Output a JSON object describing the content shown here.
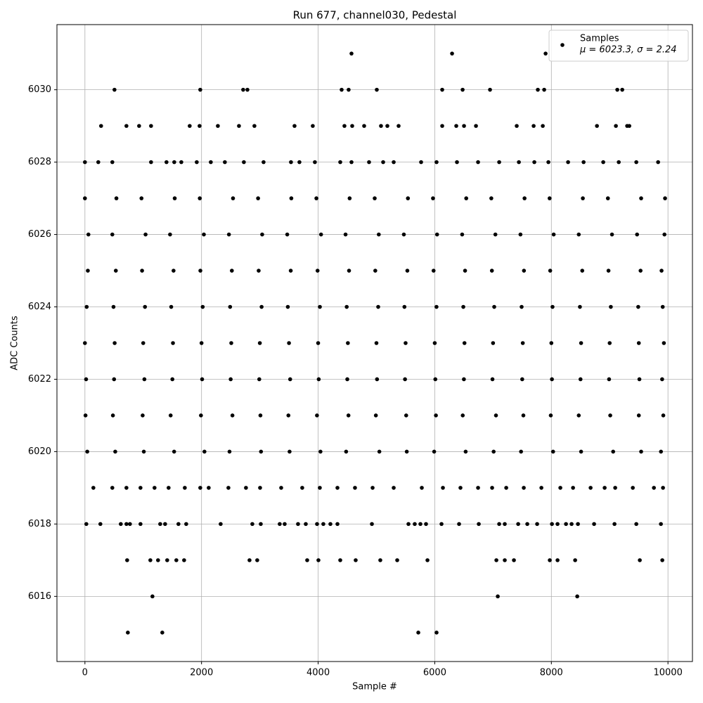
{
  "chart_data": {
    "type": "scatter",
    "title": "Run 677, channel030, Pedestal",
    "x_label": "Sample #",
    "y_label": "ADC Counts",
    "xlim": [
      -480,
      10420
    ],
    "ylim": [
      6014.2,
      6031.8
    ],
    "xticks": [
      0,
      2000,
      4000,
      6000,
      8000,
      10000
    ],
    "yticks": [
      6016,
      6018,
      6020,
      6022,
      6024,
      6026,
      6028,
      6030
    ],
    "grid": true,
    "legend": "upper right",
    "legend_note": "μ = 6023.3, σ = 2.24",
    "series": [
      {
        "name": "Samples",
        "color": "#000000",
        "x": [
          4572,
          6297,
          7901,
          507,
          1978,
          2714,
          2787,
          4403,
          4523,
          5006,
          6128,
          6478,
          6948,
          7768,
          7877,
          9131,
          9216,
          277,
          712,
          929,
          1134,
          1797,
          1966,
          2280,
          2642,
          2907,
          3595,
          3908,
          4451,
          4584,
          4789,
          5078,
          5187,
          5380,
          6128,
          6369,
          6502,
          6707,
          7406,
          7696,
          7853,
          8782,
          9107,
          9300,
          9337,
          0,
          229,
          470,
          1134,
          1399,
          1532,
          1653,
          1918,
          2159,
          2400,
          2726,
          3064,
          3534,
          3679,
          3944,
          4379,
          4572,
          4873,
          5115,
          5296,
          5766,
          6031,
          6381,
          6743,
          7105,
          7443,
          7708,
          7949,
          8287,
          8553,
          8890,
          9156,
          9457,
          9831,
          0,
          540,
          970,
          1540,
          1970,
          2540,
          2970,
          3540,
          3970,
          4540,
          4970,
          5540,
          5970,
          6540,
          6970,
          7540,
          7970,
          8540,
          8970,
          9540,
          9950,
          60,
          470,
          1040,
          1460,
          2040,
          2470,
          3040,
          3470,
          4050,
          4470,
          5040,
          5470,
          6040,
          6470,
          7040,
          7470,
          8040,
          8470,
          9040,
          9470,
          9940,
          50,
          530,
          980,
          1520,
          1980,
          2520,
          2980,
          3530,
          3990,
          4530,
          4980,
          5530,
          5980,
          6520,
          6980,
          7530,
          7980,
          8530,
          8980,
          9530,
          9890,
          30,
          490,
          1030,
          1480,
          2020,
          2490,
          3030,
          3480,
          4030,
          4490,
          5030,
          5480,
          6030,
          6490,
          7020,
          7490,
          8020,
          8490,
          9020,
          9490,
          9910,
          0,
          510,
          1000,
          1510,
          2000,
          2510,
          3000,
          3500,
          4000,
          4510,
          5000,
          5500,
          6000,
          6510,
          7000,
          7510,
          8000,
          8510,
          9000,
          9500,
          9930,
          20,
          500,
          1020,
          1500,
          2010,
          2500,
          2990,
          3520,
          4010,
          4500,
          5010,
          5490,
          6010,
          6500,
          6990,
          7500,
          8010,
          8500,
          8990,
          9510,
          9900,
          10,
          480,
          990,
          1470,
          1990,
          2530,
          3010,
          3490,
          3980,
          4520,
          4990,
          5510,
          6020,
          6480,
          7050,
          7520,
          7990,
          8470,
          9010,
          9500,
          9920,
          40,
          520,
          1010,
          1530,
          2050,
          2480,
          3020,
          3510,
          4040,
          4480,
          5050,
          5520,
          5990,
          6530,
          7010,
          7480,
          8030,
          8510,
          9060,
          9540,
          9880,
          145,
          470,
          712,
          953,
          1194,
          1435,
          1713,
          1978,
          2123,
          2461,
          2762,
          3004,
          3366,
          3727,
          4029,
          4331,
          4632,
          4934,
          5296,
          5778,
          6140,
          6441,
          6743,
          6984,
          7226,
          7527,
          7829,
          8154,
          8372,
          8673,
          8914,
          9095,
          9397,
          9759,
          9915,
          24,
          265,
          615,
          712,
          772,
          953,
          1291,
          1375,
          1604,
          1737,
          2328,
          2871,
          3016,
          3341,
          3426,
          3655,
          3788,
          3981,
          4089,
          4210,
          4331,
          4922,
          5549,
          5657,
          5754,
          5850,
          6116,
          6417,
          6755,
          7105,
          7201,
          7431,
          7587,
          7756,
          8010,
          8106,
          8251,
          8347,
          8456,
          8733,
          9083,
          9457,
          9879,
          724,
          1122,
          1254,
          1411,
          1568,
          1701,
          2823,
          2955,
          3812,
          4005,
          4379,
          4644,
          5066,
          5356,
          5875,
          7057,
          7201,
          7358,
          7973,
          8106,
          8408,
          9517,
          9903,
          1158,
          7081,
          8444,
          736,
          1327,
          5718,
          6031
        ],
        "values": [
          6031,
          6031,
          6031,
          6030,
          6030,
          6030,
          6030,
          6030,
          6030,
          6030,
          6030,
          6030,
          6030,
          6030,
          6030,
          6030,
          6030,
          6029,
          6029,
          6029,
          6029,
          6029,
          6029,
          6029,
          6029,
          6029,
          6029,
          6029,
          6029,
          6029,
          6029,
          6029,
          6029,
          6029,
          6029,
          6029,
          6029,
          6029,
          6029,
          6029,
          6029,
          6029,
          6029,
          6029,
          6029,
          6028,
          6028,
          6028,
          6028,
          6028,
          6028,
          6028,
          6028,
          6028,
          6028,
          6028,
          6028,
          6028,
          6028,
          6028,
          6028,
          6028,
          6028,
          6028,
          6028,
          6028,
          6028,
          6028,
          6028,
          6028,
          6028,
          6028,
          6028,
          6028,
          6028,
          6028,
          6028,
          6028,
          6028,
          6027,
          6027,
          6027,
          6027,
          6027,
          6027,
          6027,
          6027,
          6027,
          6027,
          6027,
          6027,
          6027,
          6027,
          6027,
          6027,
          6027,
          6027,
          6027,
          6027,
          6027,
          6026,
          6026,
          6026,
          6026,
          6026,
          6026,
          6026,
          6026,
          6026,
          6026,
          6026,
          6026,
          6026,
          6026,
          6026,
          6026,
          6026,
          6026,
          6026,
          6026,
          6026,
          6025,
          6025,
          6025,
          6025,
          6025,
          6025,
          6025,
          6025,
          6025,
          6025,
          6025,
          6025,
          6025,
          6025,
          6025,
          6025,
          6025,
          6025,
          6025,
          6025,
          6025,
          6024,
          6024,
          6024,
          6024,
          6024,
          6024,
          6024,
          6024,
          6024,
          6024,
          6024,
          6024,
          6024,
          6024,
          6024,
          6024,
          6024,
          6024,
          6024,
          6024,
          6024,
          6023,
          6023,
          6023,
          6023,
          6023,
          6023,
          6023,
          6023,
          6023,
          6023,
          6023,
          6023,
          6023,
          6023,
          6023,
          6023,
          6023,
          6023,
          6023,
          6023,
          6023,
          6022,
          6022,
          6022,
          6022,
          6022,
          6022,
          6022,
          6022,
          6022,
          6022,
          6022,
          6022,
          6022,
          6022,
          6022,
          6022,
          6022,
          6022,
          6022,
          6022,
          6022,
          6021,
          6021,
          6021,
          6021,
          6021,
          6021,
          6021,
          6021,
          6021,
          6021,
          6021,
          6021,
          6021,
          6021,
          6021,
          6021,
          6021,
          6021,
          6021,
          6021,
          6021,
          6020,
          6020,
          6020,
          6020,
          6020,
          6020,
          6020,
          6020,
          6020,
          6020,
          6020,
          6020,
          6020,
          6020,
          6020,
          6020,
          6020,
          6020,
          6020,
          6020,
          6020,
          6019,
          6019,
          6019,
          6019,
          6019,
          6019,
          6019,
          6019,
          6019,
          6019,
          6019,
          6019,
          6019,
          6019,
          6019,
          6019,
          6019,
          6019,
          6019,
          6019,
          6019,
          6019,
          6019,
          6019,
          6019,
          6019,
          6019,
          6019,
          6019,
          6019,
          6019,
          6019,
          6019,
          6019,
          6019,
          6018,
          6018,
          6018,
          6018,
          6018,
          6018,
          6018,
          6018,
          6018,
          6018,
          6018,
          6018,
          6018,
          6018,
          6018,
          6018,
          6018,
          6018,
          6018,
          6018,
          6018,
          6018,
          6018,
          6018,
          6018,
          6018,
          6018,
          6018,
          6018,
          6018,
          6018,
          6018,
          6018,
          6018,
          6018,
          6018,
          6018,
          6018,
          6018,
          6018,
          6018,
          6018,
          6018,
          6017,
          6017,
          6017,
          6017,
          6017,
          6017,
          6017,
          6017,
          6017,
          6017,
          6017,
          6017,
          6017,
          6017,
          6017,
          6017,
          6017,
          6017,
          6017,
          6017,
          6017,
          6017,
          6017,
          6016,
          6016,
          6016,
          6015,
          6015,
          6015,
          6015
        ]
      }
    ]
  }
}
